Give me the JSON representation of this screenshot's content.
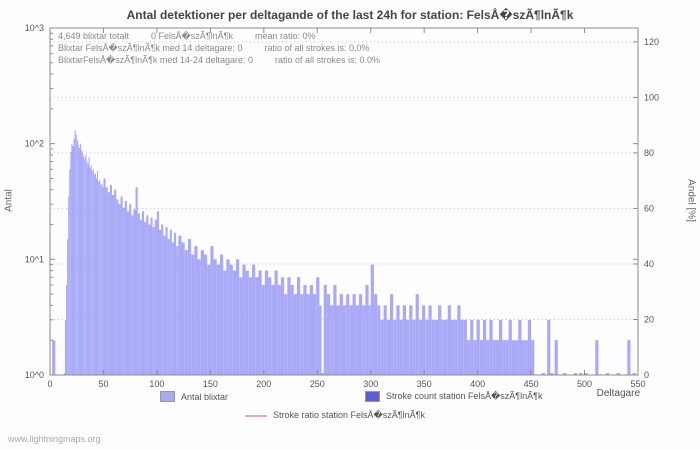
{
  "title": "Antal detektioner per deltagande of the last 24h for station: FelsÅ�szÃ¶lnÃ¶k",
  "station": "FelsÅ�szÃ¶lnÃ¶k",
  "watermark": "www.lightningmaps.org",
  "annotations": {
    "line1": [
      "4,649 blixtar totalt",
      "0 FelsÅ�szÃ¶lnÃ¶k",
      "mean ratio: 0%"
    ],
    "line2": [
      "Blixtar FelsÅ�szÃ¶lnÃ¶k med 14 deltagare: 0",
      "ratio of all strokes is: 0.0%"
    ],
    "line3": [
      "BlixtarFelsÅ�szÃ¶lnÃ¶k med 14-24 deltagare: 0",
      "ratio of all strokes is: 0.0%"
    ]
  },
  "legend": {
    "items": [
      {
        "label": "Antal blixtar"
      },
      {
        "label": "Stroke count station FelsÅ�szÃ¶lnÃ¶k"
      },
      {
        "label": "Stroke ratio station FelsÅ�szÃ¶lnÃ¶k"
      }
    ]
  },
  "colors": {
    "bar_light": "#a9a9f7",
    "bar_dark": "#5c5cd6",
    "line_pink": "#f2a0cf",
    "axis": "#8c8c8c",
    "grid": "#c4c4c4",
    "tick_text": "#555555"
  },
  "chart_data": {
    "type": "bar",
    "title": "Antal detektioner per deltagande of the last 24h for station: FelsÅ�szÃ¶lnÃ¶k",
    "xlabel": "Deltagare",
    "ylabel": "Antal",
    "y2label": "Andel [%]",
    "x_range": [
      0,
      550
    ],
    "x_ticks": [
      0,
      50,
      100,
      150,
      200,
      250,
      300,
      350,
      400,
      450,
      500,
      550
    ],
    "y_scale": "log10",
    "y_ticks": [
      "10^0",
      "10^1",
      "10^2",
      "10^3"
    ],
    "y_range_pow": [
      0,
      3
    ],
    "y2_ticks": [
      0,
      20,
      40,
      60,
      80,
      100,
      120
    ],
    "y2_range": [
      0,
      125
    ],
    "grid": "dotted-horizontal",
    "legend_position": "bottom",
    "total_strokes": 4649,
    "station_strokes": 0,
    "mean_ratio_pct": 0,
    "series": [
      {
        "name": "Antal blixtar",
        "type": "bar",
        "points": [
          [
            2,
            2
          ],
          [
            13,
            1
          ],
          [
            14,
            3
          ],
          [
            15,
            6
          ],
          [
            16,
            15
          ],
          [
            17,
            35
          ],
          [
            18,
            60
          ],
          [
            19,
            85
          ],
          [
            20,
            100
          ],
          [
            21,
            95
          ],
          [
            22,
            110
          ],
          [
            23,
            130
          ],
          [
            24,
            120
          ],
          [
            25,
            108
          ],
          [
            26,
            98
          ],
          [
            27,
            92
          ],
          [
            28,
            100
          ],
          [
            29,
            88
          ],
          [
            30,
            82
          ],
          [
            31,
            78
          ],
          [
            32,
            74
          ],
          [
            33,
            80
          ],
          [
            34,
            70
          ],
          [
            35,
            66
          ],
          [
            36,
            76
          ],
          [
            37,
            62
          ],
          [
            38,
            65
          ],
          [
            39,
            58
          ],
          [
            40,
            60
          ],
          [
            41,
            54
          ],
          [
            42,
            55
          ],
          [
            43,
            50
          ],
          [
            44,
            58
          ],
          [
            45,
            47
          ],
          [
            46,
            48
          ],
          [
            47,
            44
          ],
          [
            48,
            45
          ],
          [
            49,
            42
          ],
          [
            50,
            50
          ],
          [
            52,
            42
          ],
          [
            54,
            38
          ],
          [
            56,
            44
          ],
          [
            58,
            36
          ],
          [
            60,
            40
          ],
          [
            62,
            33
          ],
          [
            64,
            30
          ],
          [
            66,
            35
          ],
          [
            68,
            28
          ],
          [
            70,
            32
          ],
          [
            72,
            26
          ],
          [
            74,
            30
          ],
          [
            76,
            24
          ],
          [
            78,
            27
          ],
          [
            80,
            42
          ],
          [
            82,
            25
          ],
          [
            84,
            22
          ],
          [
            86,
            26
          ],
          [
            88,
            21
          ],
          [
            90,
            24
          ],
          [
            92,
            20
          ],
          [
            94,
            23
          ],
          [
            96,
            19
          ],
          [
            98,
            22
          ],
          [
            100,
            26
          ],
          [
            102,
            18
          ],
          [
            104,
            20
          ],
          [
            106,
            16
          ],
          [
            108,
            19
          ],
          [
            110,
            15
          ],
          [
            112,
            18
          ],
          [
            114,
            14
          ],
          [
            116,
            17
          ],
          [
            118,
            13
          ],
          [
            120,
            16
          ],
          [
            123,
            14
          ],
          [
            126,
            12
          ],
          [
            129,
            15
          ],
          [
            132,
            11
          ],
          [
            135,
            13
          ],
          [
            138,
            10
          ],
          [
            141,
            12
          ],
          [
            144,
            11
          ],
          [
            147,
            9
          ],
          [
            150,
            13
          ],
          [
            153,
            10
          ],
          [
            156,
            9
          ],
          [
            159,
            11
          ],
          [
            162,
            8
          ],
          [
            165,
            10
          ],
          [
            168,
            9
          ],
          [
            171,
            8
          ],
          [
            174,
            10
          ],
          [
            177,
            7
          ],
          [
            180,
            9
          ],
          [
            183,
            8
          ],
          [
            186,
            7
          ],
          [
            189,
            9
          ],
          [
            192,
            7
          ],
          [
            195,
            8
          ],
          [
            198,
            6
          ],
          [
            201,
            8
          ],
          [
            204,
            7
          ],
          [
            207,
            6
          ],
          [
            210,
            8
          ],
          [
            213,
            6
          ],
          [
            216,
            7
          ],
          [
            219,
            5
          ],
          [
            222,
            7
          ],
          [
            225,
            6
          ],
          [
            228,
            5
          ],
          [
            231,
            7
          ],
          [
            234,
            5
          ],
          [
            237,
            6
          ],
          [
            240,
            5
          ],
          [
            243,
            6
          ],
          [
            246,
            5
          ],
          [
            249,
            7
          ],
          [
            252,
            4
          ],
          [
            254,
            1
          ],
          [
            256,
            6
          ],
          [
            259,
            5
          ],
          [
            262,
            4
          ],
          [
            265,
            6
          ],
          [
            268,
            4
          ],
          [
            271,
            5
          ],
          [
            274,
            4
          ],
          [
            277,
            5
          ],
          [
            280,
            4
          ],
          [
            283,
            5
          ],
          [
            286,
            4
          ],
          [
            289,
            5
          ],
          [
            292,
            4
          ],
          [
            295,
            6
          ],
          [
            298,
            4
          ],
          [
            300,
            9
          ],
          [
            303,
            5
          ],
          [
            306,
            4
          ],
          [
            309,
            3
          ],
          [
            312,
            4
          ],
          [
            315,
            3
          ],
          [
            318,
            5
          ],
          [
            321,
            3
          ],
          [
            324,
            4
          ],
          [
            327,
            3
          ],
          [
            330,
            4
          ],
          [
            333,
            3
          ],
          [
            336,
            4
          ],
          [
            339,
            3
          ],
          [
            342,
            5
          ],
          [
            345,
            3
          ],
          [
            348,
            4
          ],
          [
            351,
            3
          ],
          [
            354,
            4
          ],
          [
            357,
            3
          ],
          [
            360,
            3
          ],
          [
            363,
            4
          ],
          [
            366,
            3
          ],
          [
            369,
            3
          ],
          [
            372,
            4
          ],
          [
            375,
            3
          ],
          [
            378,
            3
          ],
          [
            381,
            4
          ],
          [
            384,
            3
          ],
          [
            387,
            3
          ],
          [
            390,
            2
          ],
          [
            393,
            3
          ],
          [
            396,
            2
          ],
          [
            399,
            3
          ],
          [
            402,
            2
          ],
          [
            405,
            3
          ],
          [
            408,
            2
          ],
          [
            411,
            3
          ],
          [
            414,
            2
          ],
          [
            417,
            2
          ],
          [
            420,
            3
          ],
          [
            423,
            2
          ],
          [
            426,
            2
          ],
          [
            429,
            3
          ],
          [
            432,
            2
          ],
          [
            435,
            2
          ],
          [
            438,
            3
          ],
          [
            441,
            2
          ],
          [
            444,
            2
          ],
          [
            447,
            3
          ],
          [
            450,
            2
          ],
          [
            460,
            1
          ],
          [
            465,
            3
          ],
          [
            468,
            1
          ],
          [
            472,
            2
          ],
          [
            480,
            1
          ],
          [
            490,
            1
          ],
          [
            495,
            1
          ],
          [
            500,
            1
          ],
          [
            510,
            2
          ],
          [
            520,
            1
          ],
          [
            530,
            1
          ],
          [
            540,
            2
          ],
          [
            545,
            1
          ]
        ]
      },
      {
        "name": "Stroke count station FelsÅ�szÃ¶lnÃ¶k",
        "type": "bar",
        "points": [],
        "total": 0
      },
      {
        "name": "Stroke ratio station FelsÅ�szÃ¶lnÃ¶k",
        "type": "line",
        "points": [],
        "mean_ratio_pct": 0.0
      }
    ]
  }
}
